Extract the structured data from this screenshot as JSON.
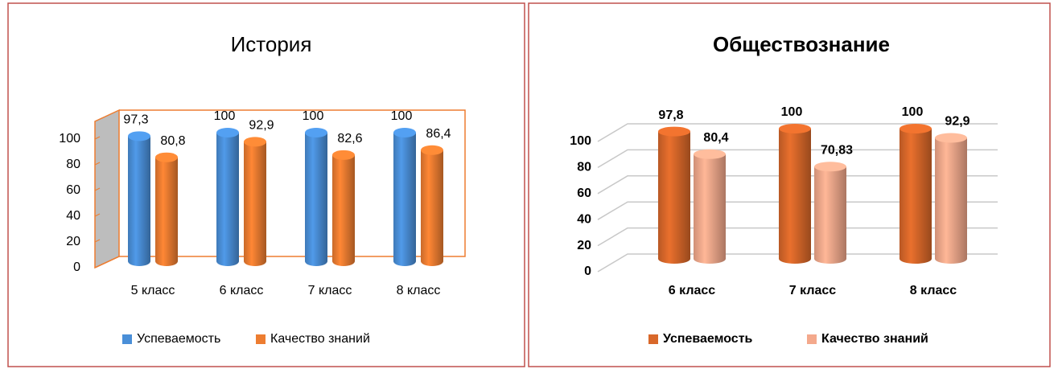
{
  "chart_data": [
    {
      "type": "bar",
      "title": "История",
      "categories": [
        "5 класс",
        "6 класс",
        "7 класс",
        "8 класс"
      ],
      "series": [
        {
          "name": "Успеваемость",
          "color": "#4a8fd8",
          "values": [
            97.3,
            100,
            100,
            100
          ],
          "value_labels": [
            "97,3",
            "100",
            "100",
            "100"
          ]
        },
        {
          "name": "Качество знаний",
          "color": "#ed7d31",
          "values": [
            80.8,
            92.9,
            82.6,
            86.4
          ],
          "value_labels": [
            "80,8",
            "92,9",
            "82,6",
            "86,4"
          ]
        }
      ],
      "ylim": [
        0,
        100
      ],
      "yticks": [
        0,
        20,
        40,
        60,
        80,
        100
      ],
      "grid": false,
      "legend": "bottom"
    },
    {
      "type": "bar",
      "title": "Обществознание",
      "categories": [
        "6 класс",
        "7 класс",
        "8  класс"
      ],
      "series": [
        {
          "name": "Успеваемость",
          "color": "#d9682a",
          "values": [
            97.8,
            100,
            100
          ],
          "value_labels": [
            "97,8",
            "100",
            "100"
          ]
        },
        {
          "name": "Качество знаний",
          "color": "#f4a98c",
          "values": [
            80.4,
            70.83,
            92.9
          ],
          "value_labels": [
            "80,4",
            "70,83",
            "92,9"
          ]
        }
      ],
      "ylim": [
        0,
        100
      ],
      "yticks": [
        0,
        20,
        40,
        60,
        80,
        100
      ],
      "grid": true,
      "legend": "bottom"
    }
  ]
}
